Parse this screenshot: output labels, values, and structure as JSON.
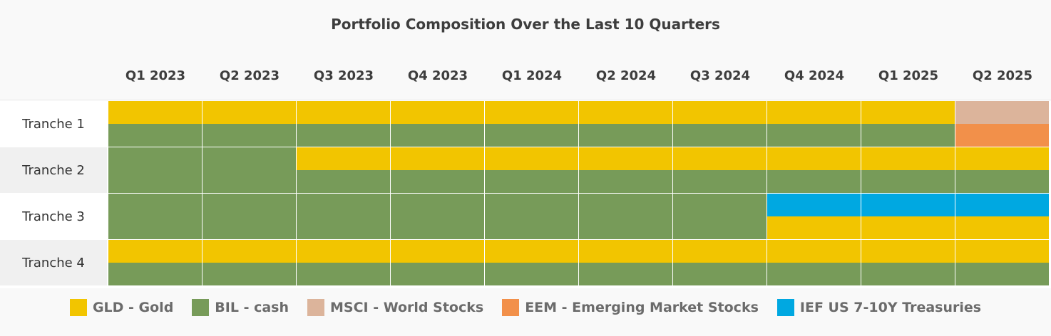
{
  "chart_data": {
    "type": "heatmap",
    "title": "Portfolio Composition Over the Last 10 Quarters",
    "columns": [
      "Q1 2023",
      "Q2 2023",
      "Q3 2023",
      "Q4 2023",
      "Q1 2024",
      "Q2 2024",
      "Q3 2024",
      "Q4 2024",
      "Q1 2025",
      "Q2 2025"
    ],
    "rows": [
      {
        "label": "Tranche 1",
        "cells": [
          [
            "GLD",
            "BIL"
          ],
          [
            "GLD",
            "BIL"
          ],
          [
            "GLD",
            "BIL"
          ],
          [
            "GLD",
            "BIL"
          ],
          [
            "GLD",
            "BIL"
          ],
          [
            "GLD",
            "BIL"
          ],
          [
            "GLD",
            "BIL"
          ],
          [
            "GLD",
            "BIL"
          ],
          [
            "GLD",
            "BIL"
          ],
          [
            "MSCI",
            "EEM"
          ]
        ]
      },
      {
        "label": "Tranche 2",
        "cells": [
          [
            "BIL"
          ],
          [
            "BIL"
          ],
          [
            "GLD",
            "BIL"
          ],
          [
            "GLD",
            "BIL"
          ],
          [
            "GLD",
            "BIL"
          ],
          [
            "GLD",
            "BIL"
          ],
          [
            "GLD",
            "BIL"
          ],
          [
            "GLD",
            "BIL"
          ],
          [
            "GLD",
            "BIL"
          ],
          [
            "GLD",
            "BIL"
          ]
        ]
      },
      {
        "label": "Tranche 3",
        "cells": [
          [
            "BIL"
          ],
          [
            "BIL"
          ],
          [
            "BIL"
          ],
          [
            "BIL"
          ],
          [
            "BIL"
          ],
          [
            "BIL"
          ],
          [
            "BIL"
          ],
          [
            "IEF",
            "GLD"
          ],
          [
            "IEF",
            "GLD"
          ],
          [
            "IEF",
            "GLD"
          ]
        ]
      },
      {
        "label": "Tranche 4",
        "cells": [
          [
            "GLD",
            "BIL"
          ],
          [
            "GLD",
            "BIL"
          ],
          [
            "GLD",
            "BIL"
          ],
          [
            "GLD",
            "BIL"
          ],
          [
            "GLD",
            "BIL"
          ],
          [
            "GLD",
            "BIL"
          ],
          [
            "GLD",
            "BIL"
          ],
          [
            "GLD",
            "BIL"
          ],
          [
            "GLD",
            "BIL"
          ],
          [
            "GLD",
            "BIL"
          ]
        ]
      }
    ],
    "legend": [
      {
        "key": "GLD",
        "label": "GLD - Gold",
        "color": "#f2c500"
      },
      {
        "key": "BIL",
        "label": "BIL - cash",
        "color": "#779b59"
      },
      {
        "key": "MSCI",
        "label": "MSCI - World Stocks",
        "color": "#dcb49b"
      },
      {
        "key": "EEM",
        "label": "EEM - Emerging Market Stocks",
        "color": "#f2904a"
      },
      {
        "key": "IEF",
        "label": "IEF US 7-10Y Treasuries",
        "color": "#00a8e1"
      }
    ],
    "legend_position": "bottom-center"
  }
}
